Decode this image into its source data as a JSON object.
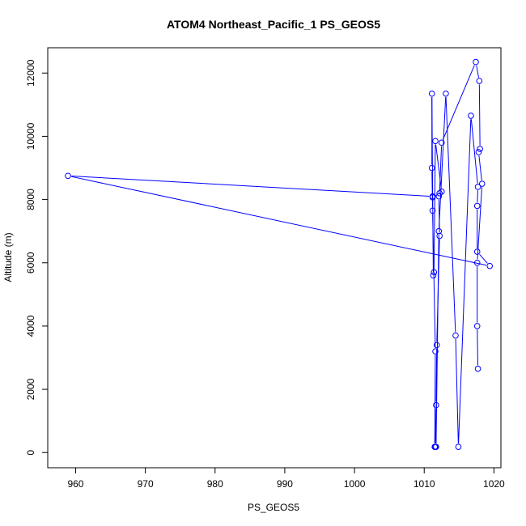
{
  "chart_data": {
    "type": "scatter",
    "title": "ATOM4 Northeast_Pacific_1 PS_GEOS5",
    "xlabel": "PS_GEOS5",
    "ylabel": "Altitude (m)",
    "xlim": [
      956,
      1021
    ],
    "ylim": [
      -480,
      12800
    ],
    "xticks": [
      960,
      970,
      980,
      990,
      1000,
      1010,
      1020
    ],
    "yticks": [
      0,
      2000,
      4000,
      6000,
      8000,
      10000,
      12000
    ],
    "grid": false,
    "series_color": "#0000ff",
    "series": [
      {
        "x": [
          1011.6,
          1011.7,
          1011.8,
          1012.2,
          1012.1,
          1012.5,
          1011.6,
          1011.4,
          1011.3,
          1011.1,
          1011.1,
          1011.2,
          1011.6,
          1011.5,
          1011.7,
          1012.1,
          1013.1,
          1014.5,
          1014.9,
          1016.7,
          1017.7,
          1017.6,
          1017.6,
          1019.4,
          958.9,
          1011.2,
          1011.2,
          1012.2,
          1012.5,
          1017.4,
          1017.9,
          1018.0,
          1017.8,
          1018.3,
          1017.6,
          1017.6,
          1017.7
        ],
        "y": [
          180,
          1500,
          3400,
          6850,
          8100,
          8250,
          9850,
          5700,
          5600,
          11350,
          9000,
          7650,
          3200,
          180,
          180,
          7000,
          11350,
          3700,
          180,
          10650,
          8400,
          7800,
          6350,
          5900,
          8750,
          8100,
          8070,
          8200,
          9800,
          12350,
          11750,
          9600,
          9500,
          8500,
          6000,
          4000,
          2650
        ]
      }
    ]
  }
}
